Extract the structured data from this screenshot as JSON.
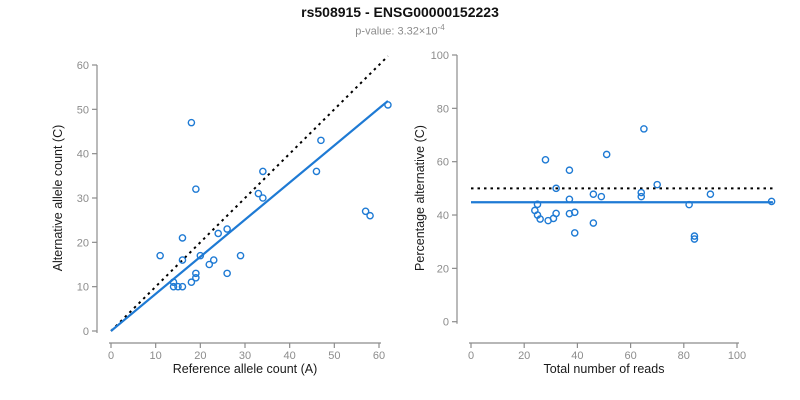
{
  "header": {
    "title": "rs508915 - ENSG00000152223",
    "subtitle_prefix": "p-value: 3.32×10",
    "subtitle_exponent": "-4"
  },
  "colors": {
    "accent_blue": "#1e7ad4",
    "identity_black": "#000000",
    "axis_gray": "#8c8c8c",
    "text_dark": "#1a1a1a"
  },
  "chart_data": [
    {
      "type": "scatter",
      "name": "allele-counts-scatter",
      "xlabel": "Reference allele count (A)",
      "ylabel": "Alternative allele count (C)",
      "xlim": [
        0,
        62.5
      ],
      "ylim": [
        0,
        62.5
      ],
      "xticks": [
        0,
        10,
        20,
        30,
        40,
        50,
        60
      ],
      "yticks": [
        0,
        10,
        20,
        30,
        40,
        50,
        60
      ],
      "grid": false,
      "marker": "open-circle",
      "points": [
        [
          62,
          51
        ],
        [
          18,
          47
        ],
        [
          47,
          43
        ],
        [
          34,
          36
        ],
        [
          46,
          36
        ],
        [
          19,
          32
        ],
        [
          33,
          31
        ],
        [
          34,
          30
        ],
        [
          57,
          27
        ],
        [
          58,
          26
        ],
        [
          26,
          23
        ],
        [
          24,
          22
        ],
        [
          16,
          21
        ],
        [
          11,
          17
        ],
        [
          20,
          17
        ],
        [
          29,
          17
        ],
        [
          16,
          16
        ],
        [
          23,
          16
        ],
        [
          22,
          15
        ],
        [
          26,
          13
        ],
        [
          19,
          13
        ],
        [
          19,
          12
        ],
        [
          18,
          11
        ],
        [
          14,
          11
        ],
        [
          14,
          10
        ],
        [
          15,
          10
        ],
        [
          16,
          10
        ]
      ],
      "lines": [
        {
          "name": "identity-line",
          "dash": "dotted",
          "color": "#000000",
          "x1": 0,
          "y1": 0,
          "x2": 62,
          "y2": 62
        },
        {
          "name": "regression-line",
          "dash": "solid",
          "color": "#1e7ad4",
          "x1": 0,
          "y1": 0,
          "x2": 62,
          "y2": 51.9
        }
      ]
    },
    {
      "type": "scatter",
      "name": "percentage-vs-coverage-scatter",
      "xlabel": "Total number of reads",
      "ylabel": "Percentage alternative (C)",
      "xlim": [
        0,
        115
      ],
      "ylim": [
        0,
        100
      ],
      "xticks": [
        0,
        20,
        40,
        60,
        80,
        100
      ],
      "yticks": [
        0,
        20,
        40,
        60,
        80,
        100
      ],
      "grid": false,
      "marker": "open-circle",
      "points": [
        [
          113,
          45.1
        ],
        [
          65,
          72.3
        ],
        [
          90,
          47.8
        ],
        [
          70,
          51.4
        ],
        [
          82,
          43.9
        ],
        [
          51,
          62.7
        ],
        [
          64,
          48.4
        ],
        [
          64,
          46.9
        ],
        [
          84,
          32.1
        ],
        [
          84,
          31.0
        ],
        [
          49,
          46.9
        ],
        [
          46,
          47.8
        ],
        [
          37,
          56.8
        ],
        [
          28,
          60.7
        ],
        [
          37,
          45.9
        ],
        [
          46,
          37.0
        ],
        [
          32,
          50.0
        ],
        [
          39,
          41.0
        ],
        [
          37,
          40.5
        ],
        [
          39,
          33.3
        ],
        [
          32,
          40.6
        ],
        [
          31,
          38.7
        ],
        [
          29,
          37.9
        ],
        [
          25,
          44.0
        ],
        [
          24,
          41.7
        ],
        [
          25,
          40.0
        ],
        [
          26,
          38.5
        ]
      ],
      "lines": [
        {
          "name": "null-50pct-line",
          "dash": "dotted",
          "color": "#000000",
          "x1": 0,
          "y1": 50,
          "x2": 113.5,
          "y2": 50
        },
        {
          "name": "mean-percentage-line",
          "dash": "solid",
          "color": "#1e7ad4",
          "x1": 0,
          "y1": 44.8,
          "x2": 113.5,
          "y2": 44.8
        }
      ]
    }
  ]
}
